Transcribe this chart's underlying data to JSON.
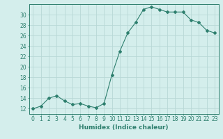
{
  "x": [
    0,
    1,
    2,
    3,
    4,
    5,
    6,
    7,
    8,
    9,
    10,
    11,
    12,
    13,
    14,
    15,
    16,
    17,
    18,
    19,
    20,
    21,
    22,
    23
  ],
  "y": [
    12,
    12.5,
    14,
    14.5,
    13.5,
    12.8,
    13,
    12.5,
    12.2,
    13,
    18.5,
    23,
    26.5,
    28.5,
    31,
    31.5,
    31,
    30.5,
    30.5,
    30.5,
    29,
    28.5,
    27,
    26.5
  ],
  "line_color": "#2e7f6e",
  "marker": "D",
  "marker_size": 2,
  "bg_color": "#d4eeec",
  "grid_color": "#b8d8d6",
  "tick_color": "#2e7f6e",
  "xlabel": "Humidex (Indice chaleur)",
  "xlim": [
    -0.5,
    23.5
  ],
  "ylim": [
    11,
    32
  ],
  "yticks": [
    12,
    14,
    16,
    18,
    20,
    22,
    24,
    26,
    28,
    30
  ],
  "xticks": [
    0,
    1,
    2,
    3,
    4,
    5,
    6,
    7,
    8,
    9,
    10,
    11,
    12,
    13,
    14,
    15,
    16,
    17,
    18,
    19,
    20,
    21,
    22,
    23
  ],
  "xlabel_fontsize": 6.5,
  "tick_fontsize": 5.5
}
